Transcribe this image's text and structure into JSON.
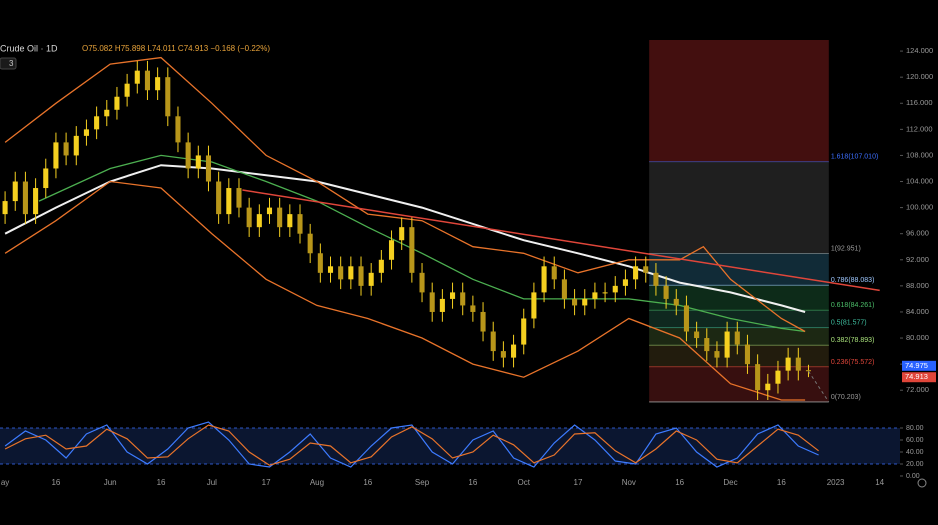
{
  "header": {
    "symbol": "Crude Oil · 1D",
    "ohlc": "O75.082 H75.898 L74.011 C74.913 −0.168 (−0.22%)",
    "indicator_count": "3"
  },
  "chart_data": [
    {
      "type": "candlestick",
      "color": "#f5d020",
      "xlim": [
        -1.5,
        264
      ],
      "ylim": [
        68.2,
        125.7
      ],
      "xticks": [
        {
          "value": 0,
          "label": "ay"
        },
        {
          "value": 15,
          "label": "16"
        },
        {
          "value": 31,
          "label": "Jun"
        },
        {
          "value": 46,
          "label": "16"
        },
        {
          "value": 61,
          "label": "Jul"
        },
        {
          "value": 77,
          "label": "17"
        },
        {
          "value": 92,
          "label": "Aug"
        },
        {
          "value": 107,
          "label": "16"
        },
        {
          "value": 123,
          "label": "Sep"
        },
        {
          "value": 138,
          "label": "16"
        },
        {
          "value": 153,
          "label": "Oct"
        },
        {
          "value": 169,
          "label": "17"
        },
        {
          "value": 184,
          "label": "Nov"
        },
        {
          "value": 199,
          "label": "16"
        },
        {
          "value": 214,
          "label": "Dec"
        },
        {
          "value": 229,
          "label": "16"
        },
        {
          "value": 245,
          "label": "2023"
        },
        {
          "value": 258,
          "label": "14"
        }
      ],
      "yticks": [
        {
          "value": 72,
          "label": "72.000"
        },
        {
          "value": 76,
          "label": "76.000"
        },
        {
          "value": 80,
          "label": "80.000"
        },
        {
          "value": 84,
          "label": "84.000"
        },
        {
          "value": 88,
          "label": "88.000"
        },
        {
          "value": 92,
          "label": "92.000"
        },
        {
          "value": 96,
          "label": "96.000"
        },
        {
          "value": 100,
          "label": "100.000"
        },
        {
          "value": 104,
          "label": "104.000"
        },
        {
          "value": 108,
          "label": "108.000"
        },
        {
          "value": 112,
          "label": "112.000"
        },
        {
          "value": 116,
          "label": "116.000"
        },
        {
          "value": 120,
          "label": "120.000"
        },
        {
          "value": 124,
          "label": "124.000"
        }
      ],
      "x": [
        0,
        3,
        6,
        9,
        12,
        15,
        18,
        21,
        24,
        27,
        30,
        33,
        36,
        39,
        42,
        45,
        48,
        51,
        54,
        57,
        60,
        63,
        66,
        69,
        72,
        75,
        78,
        81,
        84,
        87,
        90,
        93,
        96,
        99,
        102,
        105,
        108,
        111,
        114,
        117,
        120,
        123,
        126,
        129,
        132,
        135,
        138,
        141,
        144,
        147,
        150,
        153,
        156,
        159,
        162,
        165,
        168,
        171,
        174,
        177,
        180,
        183,
        186,
        189,
        192,
        195,
        198,
        201,
        204,
        207,
        210,
        213,
        216,
        219,
        222,
        225,
        228,
        231,
        234,
        237
      ],
      "open": [
        99,
        101,
        104,
        99,
        103,
        106,
        110,
        108,
        111,
        112,
        114,
        115,
        117,
        119,
        121,
        118,
        120,
        114,
        110,
        106,
        108,
        104,
        99,
        103,
        100,
        97,
        99,
        100,
        97,
        99,
        96,
        93,
        90,
        91,
        89,
        91,
        88,
        90,
        92,
        95,
        97,
        90,
        87,
        84,
        86,
        87,
        85,
        84,
        81,
        78,
        77,
        79,
        83,
        87,
        91,
        89,
        86,
        85,
        86,
        87,
        87,
        88,
        89,
        91,
        90,
        88,
        86,
        85,
        81,
        80,
        78,
        77,
        81,
        79,
        76,
        72,
        73,
        75,
        77,
        75.082
      ],
      "high": [
        102.5,
        105.5,
        105.5,
        104.5,
        107.5,
        111.5,
        111.5,
        112.5,
        113.5,
        115.5,
        116.5,
        118.5,
        120.5,
        122.5,
        122.5,
        121.5,
        121.5,
        115.5,
        111.5,
        109.5,
        109.5,
        105.5,
        104.5,
        104.5,
        101.5,
        100.5,
        101.5,
        101.5,
        100.5,
        100.5,
        97.5,
        94.5,
        92.5,
        92.5,
        92.5,
        92.5,
        91.5,
        93.5,
        96.5,
        98.5,
        98.5,
        91.5,
        88.5,
        87.5,
        88.5,
        88.5,
        86.5,
        85.5,
        82.5,
        79.5,
        80.5,
        84.5,
        88.5,
        92.5,
        92.5,
        90.5,
        87.5,
        87.5,
        88.5,
        88.5,
        89.5,
        90.5,
        92.5,
        92.5,
        91.5,
        89.5,
        87.5,
        86.5,
        82.5,
        81.5,
        79.5,
        82.5,
        82.5,
        80.5,
        77.5,
        74.5,
        76.5,
        78.5,
        78.5,
        75.898
      ],
      "low": [
        97.5,
        99.5,
        97.5,
        97.5,
        101.5,
        104.5,
        106.5,
        106.5,
        109.5,
        110.5,
        112.5,
        113.5,
        115.5,
        117.5,
        116.5,
        116.5,
        112.5,
        108.5,
        104.5,
        104.5,
        102.5,
        97.5,
        97.5,
        98.5,
        95.5,
        95.5,
        97.5,
        95.5,
        95.5,
        94.5,
        91.5,
        88.5,
        88.5,
        87.5,
        87.5,
        86.5,
        86.5,
        88.5,
        90.5,
        93.5,
        88.5,
        85.5,
        82.5,
        82.5,
        84.5,
        83.5,
        82.5,
        79.5,
        76.5,
        75.5,
        75.5,
        77.5,
        81.5,
        85.5,
        87.5,
        84.5,
        83.5,
        83.5,
        84.5,
        85.5,
        85.5,
        86.5,
        87.5,
        88.5,
        86.5,
        84.5,
        83.5,
        79.5,
        78.5,
        76.5,
        75.5,
        75.5,
        77.5,
        74.5,
        70.5,
        70.5,
        71.5,
        73.5,
        73.5,
        74.011
      ],
      "close": [
        101,
        104,
        99,
        103,
        106,
        110,
        108,
        111,
        112,
        114,
        115,
        117,
        119,
        121,
        118,
        120,
        114,
        110,
        106,
        108,
        104,
        99,
        103,
        100,
        97,
        99,
        100,
        97,
        99,
        96,
        93,
        90,
        91,
        89,
        91,
        88,
        90,
        92,
        95,
        97,
        90,
        87,
        84,
        86,
        87,
        85,
        84,
        81,
        78,
        77,
        79,
        83,
        87,
        91,
        89,
        86,
        85,
        86,
        87,
        87,
        88,
        89,
        91,
        90,
        88,
        86,
        85,
        81,
        80,
        78,
        77,
        81,
        79,
        76,
        72,
        73,
        75,
        77,
        75,
        74.913
      ],
      "overlays": [
        {
          "color": "#f0f0f0",
          "width": 2,
          "x": [
            0,
            15,
            31,
            46,
            61,
            92,
            123,
            153,
            169,
            184,
            199,
            214,
            229,
            236
          ],
          "values": [
            96,
            100,
            104,
            106.5,
            106,
            104,
            100,
            95,
            93,
            91,
            88.5,
            87,
            85,
            84
          ]
        },
        {
          "color": "#4caf50",
          "width": 1.3,
          "x": [
            10,
            31,
            46,
            61,
            77,
            92,
            107,
            123,
            138,
            153,
            169,
            184,
            199,
            214,
            229,
            236
          ],
          "values": [
            101,
            106,
            108,
            107,
            104,
            101,
            97,
            93,
            89,
            86,
            86,
            86,
            85,
            83,
            81.5,
            81
          ]
        },
        {
          "color": "#e8732a",
          "width": 1.3,
          "x": [
            0,
            15,
            31,
            46,
            61,
            77,
            92,
            107,
            123,
            138,
            153,
            169,
            184,
            199,
            206,
            214,
            229,
            236
          ],
          "values": [
            110,
            116,
            122,
            123,
            116,
            108,
            104,
            99,
            98,
            94,
            93,
            90,
            92,
            92,
            94,
            89,
            83,
            81
          ]
        },
        {
          "color": "#e8732a",
          "width": 1.3,
          "x": [
            0,
            15,
            31,
            46,
            61,
            77,
            92,
            107,
            123,
            138,
            153,
            169,
            184,
            199,
            214,
            229,
            236
          ],
          "values": [
            93,
            98,
            104,
            103,
            96,
            89,
            85,
            83,
            80,
            76,
            74,
            78,
            83,
            80,
            73,
            70.5,
            70.5
          ]
        },
        {
          "color": "#e0463a",
          "width": 1.5,
          "x": [
            70,
            258
          ],
          "values": [
            102.7,
            87.3
          ]
        }
      ],
      "fib": {
        "x": [
          190,
          243
        ],
        "top_color": "#5a1414",
        "levels": [
          {
            "value": 107.01,
            "label": "1.618(107.010)",
            "color": "#3d6fff",
            "band": "#0f2a78"
          },
          {
            "value": 92.951,
            "label": "1(92.951)",
            "color": "#9a9a9a",
            "band": "#2a2a2a"
          },
          {
            "value": 88.083,
            "label": "0.786(88.083)",
            "color": "#9ec7ff",
            "band": "#173a4a"
          },
          {
            "value": 84.261,
            "label": "0.618(84.261)",
            "color": "#4cbf6a",
            "band": "#123a22"
          },
          {
            "value": 81.577,
            "label": "0.5(81.577)",
            "color": "#3fbfa0",
            "band": "#14352a"
          },
          {
            "value": 78.893,
            "label": "0.382(78.893)",
            "color": "#a8e07a",
            "band": "#26351a"
          },
          {
            "value": 75.572,
            "label": "0.236(75.572)",
            "color": "#e0463a",
            "band": "#2e2512"
          },
          {
            "value": 70.203,
            "label": "0(70.203)",
            "color": "#9a9a9a",
            "band": "#4a1414"
          }
        ]
      },
      "price_badges": [
        {
          "value": 74.975,
          "color": "#2962ff"
        },
        {
          "value": 74.913,
          "color": "#e0463a"
        }
      ]
    },
    {
      "type": "stochastic",
      "xlim": [
        -1.5,
        264
      ],
      "ylim": [
        -6.7,
        96.7
      ],
      "yticks": [
        {
          "value": 0,
          "label": "0.00"
        },
        {
          "value": 20,
          "label": "20.00"
        },
        {
          "value": 40,
          "label": "40.00"
        },
        {
          "value": 60,
          "label": "60.00"
        },
        {
          "value": 80,
          "label": "80.00"
        }
      ],
      "bands": [
        80,
        20
      ],
      "overlays": [
        {
          "color": "#3d7bff",
          "width": 1.2,
          "x": [
            0,
            6,
            12,
            18,
            24,
            30,
            36,
            42,
            48,
            54,
            60,
            66,
            72,
            78,
            84,
            90,
            96,
            102,
            108,
            114,
            120,
            126,
            132,
            138,
            144,
            150,
            156,
            162,
            168,
            174,
            180,
            186,
            192,
            198,
            204,
            210,
            216,
            222,
            228,
            234,
            240
          ],
          "values": [
            50,
            75,
            60,
            30,
            70,
            85,
            40,
            20,
            45,
            80,
            90,
            60,
            20,
            15,
            40,
            70,
            30,
            15,
            50,
            80,
            85,
            40,
            20,
            60,
            75,
            30,
            15,
            55,
            85,
            60,
            25,
            20,
            70,
            80,
            40,
            15,
            30,
            70,
            85,
            50,
            35
          ]
        },
        {
          "color": "#e8732a",
          "width": 1.2,
          "x": [
            0,
            6,
            12,
            18,
            24,
            30,
            36,
            42,
            48,
            54,
            60,
            66,
            72,
            78,
            84,
            90,
            96,
            102,
            108,
            114,
            120,
            126,
            132,
            138,
            144,
            150,
            156,
            162,
            168,
            174,
            180,
            186,
            192,
            198,
            204,
            210,
            216,
            222,
            228,
            234,
            240
          ],
          "values": [
            45,
            62,
            68,
            45,
            50,
            78,
            62,
            30,
            32,
            62,
            85,
            75,
            40,
            18,
            28,
            55,
            50,
            22,
            32,
            65,
            82,
            62,
            30,
            40,
            68,
            52,
            22,
            35,
            70,
            72,
            42,
            22,
            45,
            75,
            60,
            28,
            22,
            50,
            78,
            68,
            42
          ]
        }
      ]
    }
  ]
}
